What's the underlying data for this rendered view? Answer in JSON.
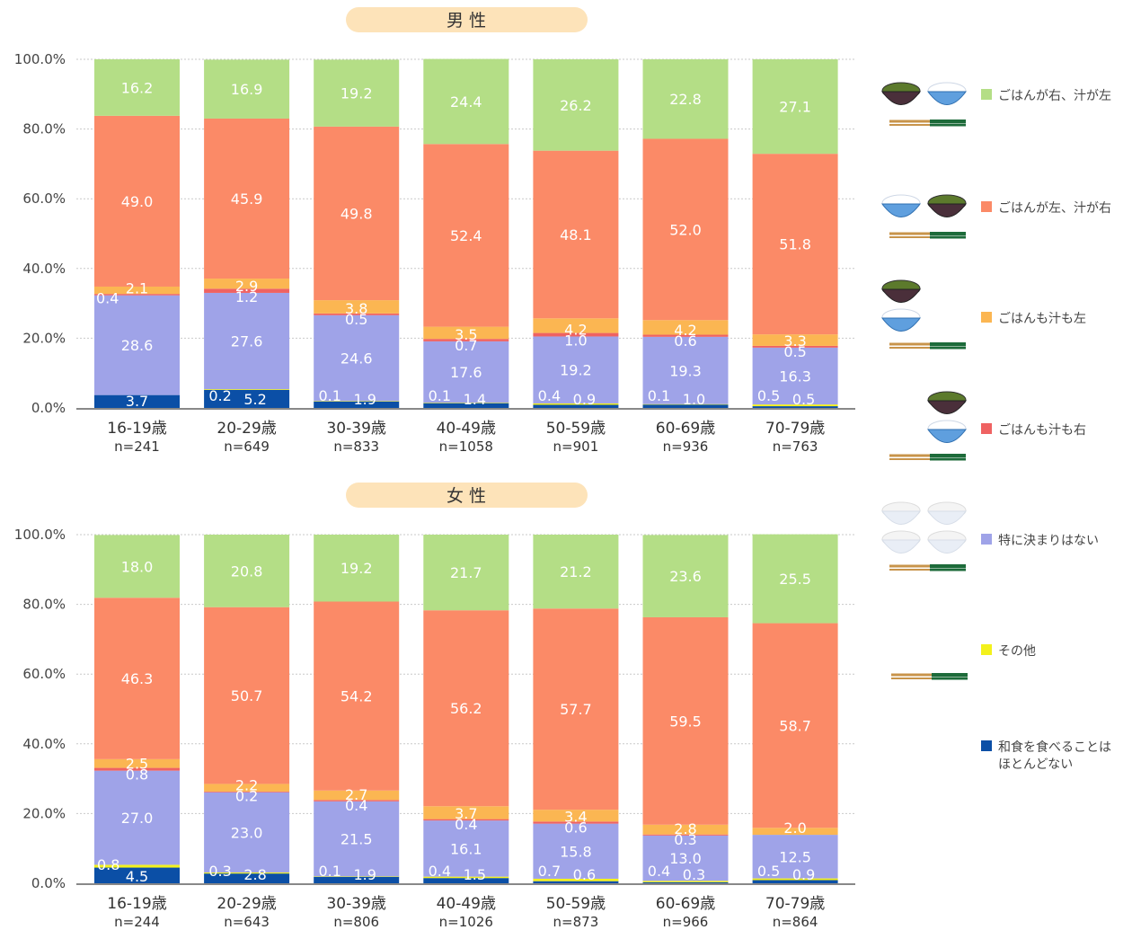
{
  "legend": [
    {
      "key": "right",
      "label": "ごはんが右、汁が左",
      "color": "#b4de86",
      "icon": "rice-right-soup-left-icon"
    },
    {
      "key": "left",
      "label": "ごはんが左、汁が右",
      "color": "#fb8a67",
      "icon": "rice-left-soup-right-icon"
    },
    {
      "key": "bothleft",
      "label": "ごはんも汁も左",
      "color": "#fbb652",
      "icon": "both-left-icon"
    },
    {
      "key": "bothright",
      "label": "ごはんも汁も右",
      "color": "#ef6262",
      "icon": "both-right-icon"
    },
    {
      "key": "none",
      "label": "特に決まりはない",
      "color": "#9fa3e8",
      "icon": "no-rule-icon"
    },
    {
      "key": "other",
      "label": "その他",
      "color": "#f3f11c",
      "icon": "chopsticks-icon"
    },
    {
      "key": "rarely",
      "label": "和食を食べることは\nほとんどない",
      "color": "#0b4fa6",
      "icon": ""
    }
  ],
  "chart_data": [
    {
      "type": "bar",
      "stacked": true,
      "title": "男 性",
      "ylim": [
        0,
        100
      ],
      "yticks": [
        "0.0%",
        "20.0%",
        "40.0%",
        "60.0%",
        "80.0%",
        "100.0%"
      ],
      "categories": [
        "16-19歳",
        "20-29歳",
        "30-39歳",
        "40-49歳",
        "50-59歳",
        "60-69歳",
        "70-79歳"
      ],
      "n": [
        "n=241",
        "n=649",
        "n=833",
        "n=1058",
        "n=901",
        "n=936",
        "n=763"
      ],
      "series": [
        {
          "name": "和食を食べることはほとんどない",
          "values": [
            3.7,
            5.2,
            1.9,
            1.4,
            0.9,
            1.0,
            0.5
          ]
        },
        {
          "name": "その他",
          "values": [
            0.0,
            0.2,
            0.1,
            0.1,
            0.4,
            0.1,
            0.5
          ]
        },
        {
          "name": "特に決まりはない",
          "values": [
            28.6,
            27.6,
            24.6,
            17.6,
            19.2,
            19.3,
            16.3
          ]
        },
        {
          "name": "ごはんも汁も右",
          "values": [
            0.4,
            1.2,
            0.5,
            0.7,
            1.0,
            0.6,
            0.5
          ]
        },
        {
          "name": "ごはんも汁も左",
          "values": [
            2.1,
            2.9,
            3.8,
            3.5,
            4.2,
            4.2,
            3.3
          ]
        },
        {
          "name": "ごはんが左、汁が右",
          "values": [
            49.0,
            45.9,
            49.8,
            52.4,
            48.1,
            52.0,
            51.8
          ]
        },
        {
          "name": "ごはんが右、汁が左",
          "values": [
            16.2,
            16.9,
            19.2,
            24.4,
            26.2,
            22.8,
            27.1
          ]
        }
      ],
      "labels": [
        [
          "3.7",
          "5.2",
          "1.9",
          "1.4",
          "0.9",
          "1.0",
          "0.5"
        ],
        [
          "",
          "0.2",
          "0.1",
          "0.1",
          "0.4",
          "0.1",
          "0.5"
        ],
        [
          "28.6",
          "27.6",
          "24.6",
          "17.6",
          "19.2",
          "19.3",
          "16.3"
        ],
        [
          "0.4",
          "1.2",
          "0.5",
          "0.7",
          "1.0",
          "0.6",
          "0.5"
        ],
        [
          "2.1",
          "2.9",
          "3.8",
          "3.5",
          "4.2",
          "4.2",
          "3.3"
        ],
        [
          "49.0",
          "45.9",
          "49.8",
          "52.4",
          "48.1",
          "52.0",
          "51.8"
        ],
        [
          "16.2",
          "16.9",
          "19.2",
          "24.4",
          "26.2",
          "22.8",
          "27.1"
        ]
      ]
    },
    {
      "type": "bar",
      "stacked": true,
      "title": "女 性",
      "ylim": [
        0,
        100
      ],
      "yticks": [
        "0.0%",
        "20.0%",
        "40.0%",
        "60.0%",
        "80.0%",
        "100.0%"
      ],
      "categories": [
        "16-19歳",
        "20-29歳",
        "30-39歳",
        "40-49歳",
        "50-59歳",
        "60-69歳",
        "70-79歳"
      ],
      "n": [
        "n=244",
        "n=643",
        "n=806",
        "n=1026",
        "n=873",
        "n=966",
        "n=864"
      ],
      "series": [
        {
          "name": "和食を食べることはほとんどない",
          "values": [
            4.5,
            2.8,
            1.9,
            1.5,
            0.6,
            0.3,
            0.9
          ]
        },
        {
          "name": "その他",
          "values": [
            0.8,
            0.3,
            0.1,
            0.4,
            0.7,
            0.4,
            0.5
          ]
        },
        {
          "name": "特に決まりはない",
          "values": [
            27.0,
            23.0,
            21.5,
            16.1,
            15.8,
            13.0,
            12.5
          ]
        },
        {
          "name": "ごはんも汁も右",
          "values": [
            0.8,
            0.2,
            0.4,
            0.4,
            0.6,
            0.3,
            0.0
          ]
        },
        {
          "name": "ごはんも汁も左",
          "values": [
            2.5,
            2.2,
            2.7,
            3.7,
            3.4,
            2.8,
            2.0
          ]
        },
        {
          "name": "ごはんが左、汁が右",
          "values": [
            46.3,
            50.7,
            54.2,
            56.2,
            57.7,
            59.5,
            58.7
          ]
        },
        {
          "name": "ごはんが右、汁が左",
          "values": [
            18.0,
            20.8,
            19.2,
            21.7,
            21.2,
            23.6,
            25.5
          ]
        }
      ],
      "labels": [
        [
          "4.5",
          "2.8",
          "1.9",
          "1.5",
          "0.6",
          "0.3",
          "0.9"
        ],
        [
          "0.8",
          "0.3",
          "0.1",
          "0.4",
          "0.7",
          "0.4",
          "0.5"
        ],
        [
          "27.0",
          "23.0",
          "21.5",
          "16.1",
          "15.8",
          "13.0",
          "12.5"
        ],
        [
          "0.8",
          "0.2",
          "0.4",
          "0.4",
          "0.6",
          "0.3",
          ""
        ],
        [
          "2.5",
          "2.2",
          "2.7",
          "3.7",
          "3.4",
          "2.8",
          "2.0"
        ],
        [
          "46.3",
          "50.7",
          "54.2",
          "56.2",
          "57.7",
          "59.5",
          "58.7"
        ],
        [
          "18.0",
          "20.8",
          "19.2",
          "21.7",
          "21.2",
          "23.6",
          "25.5"
        ]
      ]
    }
  ]
}
